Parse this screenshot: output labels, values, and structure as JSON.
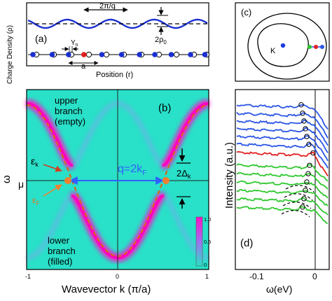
{
  "panel_a": {
    "label": "(a)",
    "ylabel": "Charge Density (ρ)",
    "xlabel": "Position (r)",
    "wavelength_label": "2π/q",
    "amplitude_label": "2ρ",
    "amplitude_sub": "0",
    "displacement_label": "Y",
    "displacement_sub": "n",
    "lattice_label": "a"
  },
  "panel_b": {
    "label": "(b)",
    "upper_branch_line1": "upper",
    "upper_branch_line2": "branch",
    "upper_branch_line3": "(empty)",
    "lower_branch_line1": "lower",
    "lower_branch_line2": "branch",
    "lower_branch_line3": "(filled)",
    "ylabel": "ω",
    "xlabel": "Wavevector k (π/a)",
    "mu_label": "μ",
    "epsilon_k_label": "ε",
    "epsilon_k_sub": "k",
    "epsilon_F_label": "ε",
    "epsilon_F_sub": "F",
    "q_label": "q=2k",
    "q_sub": "F",
    "gap_label": "2Δ",
    "gap_sub": "k",
    "x_ticks": [
      "-1",
      "0",
      "1"
    ],
    "colorbar_ticks": [
      "1.0",
      "0.5",
      "0"
    ],
    "colors": {
      "background": "#29e0c8",
      "band": "#ff10c8",
      "dispersion": "#d2691e",
      "q_arrow": "#3060ff"
    }
  },
  "panel_c": {
    "label": "(c)",
    "K_label": "K"
  },
  "panel_d": {
    "label": "(d)",
    "ylabel": "Intensity (a.u.)",
    "xlabel": "ω(eV)",
    "x_ticks": [
      "-0.1",
      "0"
    ],
    "colors": {
      "upper": "#2a55e6",
      "middle": "#e02020",
      "lower": "#2ec82e"
    }
  }
}
